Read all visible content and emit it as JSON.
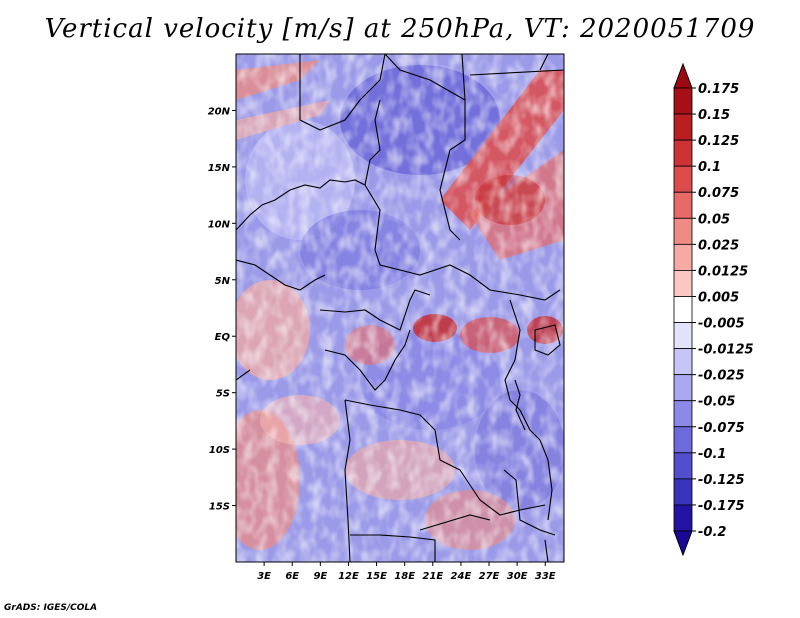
{
  "title": "Vertical velocity [m/s] at 250hPa, VT: 2020051709",
  "footer": "GrADS: IGES/COLA",
  "map": {
    "lon_range": [
      0,
      35
    ],
    "lat_range": [
      -20,
      25
    ],
    "x_ticks": [
      {
        "value": 3,
        "label": "3E"
      },
      {
        "value": 6,
        "label": "6E"
      },
      {
        "value": 9,
        "label": "9E"
      },
      {
        "value": 12,
        "label": "12E"
      },
      {
        "value": 15,
        "label": "15E"
      },
      {
        "value": 18,
        "label": "18E"
      },
      {
        "value": 21,
        "label": "21E"
      },
      {
        "value": 24,
        "label": "24E"
      },
      {
        "value": 27,
        "label": "27E"
      },
      {
        "value": 30,
        "label": "30E"
      },
      {
        "value": 33,
        "label": "33E"
      }
    ],
    "y_ticks": [
      {
        "value": 20,
        "label": "20N"
      },
      {
        "value": 15,
        "label": "15N"
      },
      {
        "value": 10,
        "label": "10N"
      },
      {
        "value": 5,
        "label": "5N"
      },
      {
        "value": 0,
        "label": "EQ"
      },
      {
        "value": -5,
        "label": "5S"
      },
      {
        "value": -10,
        "label": "10S"
      },
      {
        "value": -15,
        "label": "15S"
      }
    ]
  },
  "colorbar": {
    "levels": [
      {
        "label": "0.175",
        "color": "#a50f15"
      },
      {
        "label": "0.15",
        "color": "#bb1e22"
      },
      {
        "label": "0.125",
        "color": "#cd3236"
      },
      {
        "label": "0.1",
        "color": "#dd4c4c"
      },
      {
        "label": "0.075",
        "color": "#e86a66"
      },
      {
        "label": "0.05",
        "color": "#f08a84"
      },
      {
        "label": "0.025",
        "color": "#f6aaa4"
      },
      {
        "label": "0.0125",
        "color": "#fac8c3"
      },
      {
        "label": "0.005",
        "color": "#fde3df"
      },
      {
        "label": "-0.005",
        "color": "#ffffff"
      },
      {
        "label": "-0.0125",
        "color": "#e2e2fb"
      },
      {
        "label": "-0.025",
        "color": "#c6c5f6"
      },
      {
        "label": "-0.05",
        "color": "#aaa8f0"
      },
      {
        "label": "-0.075",
        "color": "#8c89e8"
      },
      {
        "label": "-0.1",
        "color": "#6e6adc"
      },
      {
        "label": "-0.125",
        "color": "#534ecd"
      },
      {
        "label": "-0.175",
        "color": "#3a33bb"
      },
      {
        "label": "-0.2",
        "color": "#2412a4"
      }
    ],
    "over_color": "#9b0a12",
    "under_color": "#1a0896"
  }
}
